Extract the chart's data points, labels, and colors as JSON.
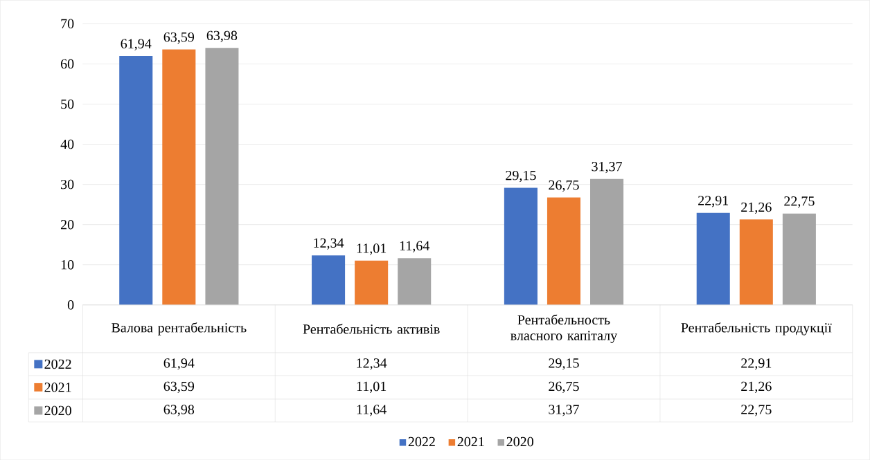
{
  "chart_data": {
    "type": "bar",
    "categories": [
      "Валова рентабельність",
      "Рентабельність активів",
      "Рентабельность власного капіталу",
      "Рентабельність продукції"
    ],
    "series": [
      {
        "name": "2022",
        "color": "#4472c4",
        "values": [
          61.94,
          12.34,
          29.15,
          22.91
        ],
        "value_labels": [
          "61,94",
          "12,34",
          "29,15",
          "22,91"
        ]
      },
      {
        "name": "2021",
        "color": "#ed7d31",
        "values": [
          63.59,
          11.01,
          26.75,
          21.26
        ],
        "value_labels": [
          "63,59",
          "11,01",
          "26,75",
          "21,26"
        ]
      },
      {
        "name": "2020",
        "color": "#a5a5a5",
        "values": [
          63.98,
          11.64,
          31.37,
          22.75
        ],
        "value_labels": [
          "63,98",
          "11,64",
          "31,37",
          "22,75"
        ]
      }
    ],
    "ylim": [
      0,
      70
    ],
    "yticks": [
      0,
      10,
      20,
      30,
      40,
      50,
      60,
      70
    ],
    "grid": "y",
    "legend": "bottom"
  }
}
